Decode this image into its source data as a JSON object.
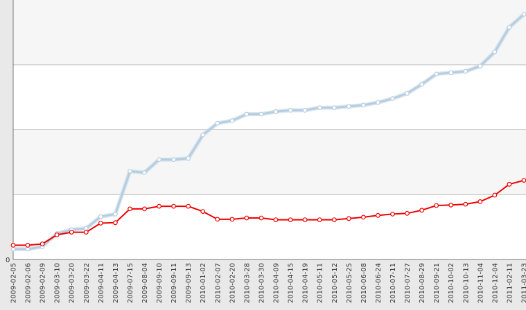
{
  "chart_data": {
    "type": "line",
    "title": "",
    "xlabel": "",
    "ylabel": "",
    "y_tick_labels": [
      "0"
    ],
    "grid": true,
    "grid_axis": "y",
    "legend": "none",
    "ylim": [
      0,
      100
    ],
    "x": [
      "2009-02-05",
      "2009-02-06",
      "2009-02-09",
      "2009-03-10",
      "2009-03-20",
      "2009-03-22",
      "2009-04-11",
      "2009-04-13",
      "2009-07-15",
      "2009-08-04",
      "2009-09-10",
      "2009-09-11",
      "2009-09-13",
      "2010-01-02",
      "2010-02-07",
      "2010-02-20",
      "2010-03-28",
      "2010-03-30",
      "2010-04-09",
      "2010-04-15",
      "2010-04-19",
      "2010-05-11",
      "2010-05-12",
      "2010-05-25",
      "2010-06-08",
      "2010-06-24",
      "2010-07-11",
      "2010-07-27",
      "2010-08-29",
      "2010-09-21",
      "2010-10-02",
      "2010-10-13",
      "2010-11-04",
      "2010-12-04",
      "2011-02-11",
      "2011-03-23"
    ],
    "series": [
      {
        "color": "#b6cde0",
        "point_fill": "#ffffff",
        "values": [
          4,
          4,
          5,
          10,
          11.5,
          12,
          16.5,
          17.5,
          34,
          33.5,
          38.5,
          38.5,
          39,
          48,
          52.5,
          53.5,
          56,
          56,
          57,
          57.5,
          57.5,
          58.5,
          58.5,
          59,
          59.5,
          60.5,
          62,
          64,
          67.5,
          71.5,
          72,
          72.5,
          74.5,
          80,
          89.5,
          94.5
        ]
      },
      {
        "color": "#ee0000",
        "point_fill": "#ffffff",
        "values": [
          5.5,
          5.5,
          6,
          9.5,
          10.5,
          10.5,
          14,
          14.2,
          19.5,
          19.5,
          20.5,
          20.5,
          20.5,
          18.5,
          15.5,
          15.5,
          16,
          16,
          15.3,
          15.3,
          15.3,
          15.3,
          15.3,
          15.8,
          16.3,
          17,
          17.5,
          17.8,
          19,
          20.8,
          21,
          21.3,
          22.3,
          24.8,
          29,
          30.5
        ]
      }
    ],
    "colors": {
      "band_light": "#f6f6f6",
      "band_white": "#ffffff",
      "gridline": "#bbbbbb",
      "axis": "#777777",
      "frame": "#e9e9e9"
    }
  }
}
